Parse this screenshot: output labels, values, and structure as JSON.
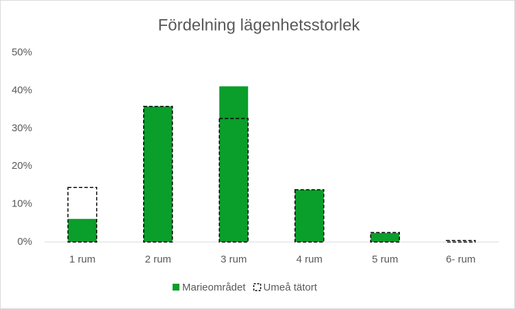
{
  "chart_data": {
    "type": "bar",
    "title": "Fördelning lägenhetsstorlek",
    "categories": [
      "1 rum",
      "2 rum",
      "3 rum",
      "4 rum",
      "5 rum",
      "6- rum"
    ],
    "series": [
      {
        "name": "Marieområdet",
        "color": "#0a9e2a",
        "style": "filled",
        "values": [
          6.1,
          35.8,
          41.1,
          13.8,
          2.4,
          0
        ]
      },
      {
        "name": "Umeå tätort",
        "color": "#000000",
        "style": "dashed",
        "values": [
          14.4,
          35.8,
          32.6,
          13.8,
          2.5,
          0.4
        ]
      }
    ],
    "ylim": [
      0,
      50
    ],
    "yticks": [
      {
        "value": 0,
        "label": "0%"
      },
      {
        "value": 10,
        "label": "10%"
      },
      {
        "value": 20,
        "label": "20%"
      },
      {
        "value": 30,
        "label": "30%"
      },
      {
        "value": 40,
        "label": "40%"
      },
      {
        "value": 50,
        "label": "50%"
      }
    ],
    "grid": false,
    "legend": "bottom"
  }
}
